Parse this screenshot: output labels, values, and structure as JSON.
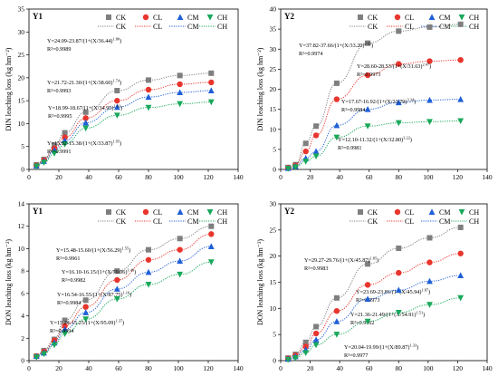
{
  "figure": {
    "colors": {
      "CK": "#7f7f7f",
      "CL": "#e8352d",
      "CM": "#1f5fd6",
      "CH": "#18a85a"
    },
    "legend_labels": [
      "CK",
      "CL",
      "CM",
      "CH"
    ]
  },
  "chart_data": [
    {
      "type": "scatter",
      "panel_label": "Y1",
      "ylabel": "DIN leaching loss (kg hm⁻²)",
      "xlim": [
        0,
        140
      ],
      "ylim": [
        0,
        35
      ],
      "xticks": [
        0,
        20,
        40,
        60,
        80,
        100,
        120,
        140
      ],
      "yticks": [
        0,
        5,
        10,
        15,
        20,
        25,
        30,
        35
      ],
      "legend": "top",
      "series": [
        {
          "name": "CK",
          "x": [
            5,
            10,
            17,
            24,
            38,
            59,
            80,
            101,
            122
          ],
          "y": [
            1.0,
            2.2,
            5.3,
            8.0,
            12.5,
            17.2,
            19.5,
            20.5,
            21.0
          ],
          "equation": "Y=24.09-23.87/(1+(X/36.44)^1.80)",
          "r2": "R²=0.9989"
        },
        {
          "name": "CL",
          "x": [
            5,
            10,
            17,
            24,
            38,
            59,
            80,
            101,
            122
          ],
          "y": [
            0.9,
            2.0,
            4.6,
            7.0,
            11.2,
            15.0,
            17.4,
            18.6,
            19.0
          ],
          "equation": "Y=21.72-21.30/(1+(X/38.60)^1.74)",
          "r2": "R²=0.9993"
        },
        {
          "name": "CM",
          "x": [
            5,
            10,
            17,
            24,
            38,
            59,
            80,
            101,
            122
          ],
          "y": [
            0.8,
            1.8,
            4.2,
            6.3,
            10.2,
            13.6,
            15.8,
            16.8,
            17.2
          ],
          "equation": "Y=18.99-18.67/(1+(X/34.95)^1.81)",
          "r2": "R²=0.9995"
        },
        {
          "name": "CH",
          "x": [
            5,
            10,
            17,
            24,
            38,
            59,
            80,
            101,
            122
          ],
          "y": [
            0.7,
            1.5,
            3.5,
            5.5,
            9.0,
            11.8,
            13.5,
            14.3,
            14.7
          ],
          "equation": "Y=15.92-15.38/(1+(X/33.87)^1.95)",
          "r2": "R²=0.9991"
        }
      ]
    },
    {
      "type": "scatter",
      "panel_label": "Y2",
      "ylabel": "DIN leaching loss (kg hm⁻²)",
      "xlim": [
        0,
        140
      ],
      "ylim": [
        0,
        40
      ],
      "xticks": [
        0,
        20,
        40,
        60,
        80,
        100,
        120,
        140
      ],
      "yticks": [
        0,
        5,
        10,
        15,
        20,
        25,
        30,
        35,
        40
      ],
      "legend": "top",
      "series": [
        {
          "name": "CK",
          "x": [
            5,
            10,
            17,
            24,
            38,
            59,
            80,
            101,
            122
          ],
          "y": [
            0.5,
            1.2,
            6.5,
            10.8,
            21.5,
            31.5,
            34.5,
            35.5,
            36.2
          ],
          "equation": "Y=37.82-37.66/(1+(X/33.20)^2.62)",
          "r2": "R²=0.9974"
        },
        {
          "name": "CL",
          "x": [
            5,
            10,
            17,
            24,
            38,
            59,
            80,
            101,
            122
          ],
          "y": [
            0.4,
            1.0,
            4.5,
            8.5,
            17.5,
            23.5,
            26.3,
            27.0,
            27.3
          ],
          "equation": "Y=28.60-28.53/(1+(X/31.63)^2.47)",
          "r2": "R²=0.9973"
        },
        {
          "name": "CM",
          "x": [
            5,
            10,
            17,
            24,
            38,
            59,
            80,
            101,
            122
          ],
          "y": [
            0.3,
            0.8,
            2.8,
            4.5,
            11.0,
            15.0,
            16.7,
            17.3,
            17.5
          ],
          "equation": "Y=17.67-16.92/(1+(X/33.79)^3.34)",
          "r2": "R²=0.9984"
        },
        {
          "name": "CH",
          "x": [
            5,
            10,
            17,
            24,
            38,
            59,
            80,
            101,
            122
          ],
          "y": [
            0.2,
            0.6,
            2.0,
            3.3,
            8.0,
            10.8,
            11.6,
            11.9,
            12.1
          ],
          "equation": "Y=12.10-11.32/(1+(X/32.80)^3.22)",
          "r2": "R²=0.9981"
        }
      ]
    },
    {
      "type": "scatter",
      "panel_label": "Y1",
      "ylabel": "DON leaching loss (kg hm⁻²)",
      "xlim": [
        0,
        140
      ],
      "ylim": [
        0,
        14
      ],
      "xticks": [
        0,
        20,
        40,
        60,
        80,
        100,
        120,
        140
      ],
      "yticks": [
        0,
        2,
        4,
        6,
        8,
        10,
        12,
        14
      ],
      "legend": "top",
      "series": [
        {
          "name": "CK",
          "x": [
            5,
            10,
            17,
            24,
            38,
            59,
            80,
            101,
            122
          ],
          "y": [
            0.4,
            0.9,
            1.9,
            3.6,
            5.4,
            8.0,
            9.9,
            10.9,
            12.0
          ],
          "equation": "Y=15.48-15.60/(1+(X/56.29)^1.55)",
          "r2": "R²=0.9961"
        },
        {
          "name": "CL",
          "x": [
            5,
            10,
            17,
            24,
            38,
            59,
            80,
            101,
            122
          ],
          "y": [
            0.4,
            0.8,
            1.8,
            3.1,
            4.8,
            7.2,
            9.0,
            9.9,
            11.3
          ],
          "equation": "Y=16.10-16.15/(1+(X/70.06)^1.46)",
          "r2": "R²=0.9982"
        },
        {
          "name": "CM",
          "x": [
            5,
            10,
            17,
            24,
            38,
            59,
            80,
            101,
            122
          ],
          "y": [
            0.4,
            0.7,
            1.6,
            2.8,
            4.3,
            6.4,
            7.9,
            8.9,
            10.2
          ],
          "equation": "Y=16.54-16.55/(1+(X/87.75)^1.16)",
          "r2": "R²=0.9984"
        },
        {
          "name": "CH",
          "x": [
            5,
            10,
            17,
            24,
            38,
            59,
            80,
            101,
            122
          ],
          "y": [
            0.3,
            0.6,
            1.4,
            2.4,
            3.7,
            5.5,
            6.8,
            7.7,
            8.8
          ],
          "equation": "Y=15.24-15.25/(1+(X/95.09)^1.37)",
          "r2": "R²=0.9994"
        }
      ]
    },
    {
      "type": "scatter",
      "panel_label": "Y2",
      "ylabel": "DON leaching loss (kg hm⁻²)",
      "xlim": [
        0,
        140
      ],
      "ylim": [
        0,
        30
      ],
      "xticks": [
        0,
        20,
        40,
        60,
        80,
        100,
        120,
        140
      ],
      "yticks": [
        0,
        5,
        10,
        15,
        20,
        25,
        30
      ],
      "legend": "top",
      "series": [
        {
          "name": "CK",
          "x": [
            5,
            10,
            17,
            24,
            38,
            59,
            80,
            101,
            122
          ],
          "y": [
            0.5,
            1.2,
            3.5,
            6.5,
            12.0,
            18.5,
            21.5,
            23.5,
            25.5
          ],
          "equation": "Y=29.27-29.76/(1+(X/45.87)^1.85)",
          "r2": "R²=0.9983"
        },
        {
          "name": "CL",
          "x": [
            5,
            10,
            17,
            24,
            38,
            59,
            80,
            101,
            122
          ],
          "y": [
            0.4,
            1.0,
            2.7,
            5.2,
            9.5,
            14.5,
            16.8,
            18.8,
            20.5
          ],
          "equation": "Y=23.69-23.86/(1+(X/45.94)^1.87)",
          "r2": "R²=0.9973"
        },
        {
          "name": "CM",
          "x": [
            5,
            10,
            17,
            24,
            38,
            59,
            80,
            101,
            122
          ],
          "y": [
            0.3,
            0.8,
            2.1,
            4.0,
            7.5,
            11.8,
            13.5,
            15.2,
            16.3
          ],
          "equation": "Y=21.36-21.49/(1+(X/54.91)^1.51)",
          "r2": "R²=0.9962"
        },
        {
          "name": "CH",
          "x": [
            5,
            10,
            17,
            24,
            38,
            59,
            80,
            101,
            122
          ],
          "y": [
            0.2,
            0.5,
            1.5,
            3.0,
            5.0,
            7.5,
            9.2,
            10.7,
            12.0
          ],
          "equation": "Y=20.04-19.99/(1+(X/89.87)^1.33)",
          "r2": "R²=0.9977"
        }
      ]
    }
  ]
}
